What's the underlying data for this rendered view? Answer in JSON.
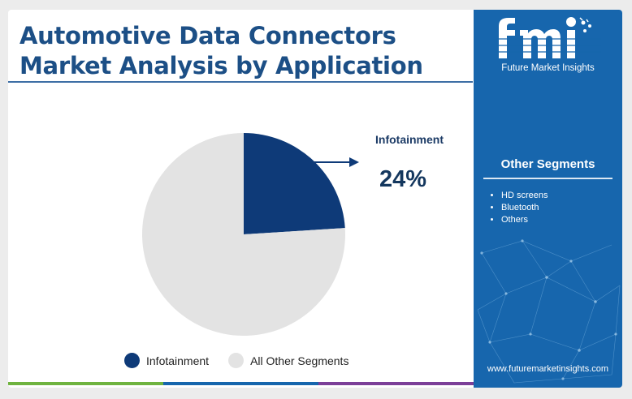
{
  "title_lines": [
    "Automotive Data Connectors",
    "Market Analysis by Application"
  ],
  "brand": {
    "logo_text": "Future Market Insights",
    "website": "www.futuremarketinsights.com"
  },
  "other_segments": {
    "title": "Other Segments",
    "items": [
      "HD screens",
      "Bluetooth",
      "Others"
    ]
  },
  "callout": {
    "label": "Infotainment",
    "value": "24%"
  },
  "legend": [
    {
      "label": "Infotainment",
      "color": "#0e3a78"
    },
    {
      "label": "All Other Segments",
      "color": "#e3e3e3"
    }
  ],
  "colors": {
    "title": "#1c4f86",
    "panel": "#1766ad",
    "bottom_bar": [
      "#6fb33f",
      "#1766ad",
      "#7c3f98"
    ]
  },
  "chart_data": {
    "type": "pie",
    "title": "Automotive Data Connectors Market Analysis by Application",
    "labels": [
      "Infotainment",
      "All Other Segments"
    ],
    "values": [
      24,
      76
    ],
    "colors": [
      "#0e3a78",
      "#e3e3e3"
    ],
    "start_angle_deg": 0,
    "direction": "clockwise",
    "legend_position": "bottom"
  }
}
